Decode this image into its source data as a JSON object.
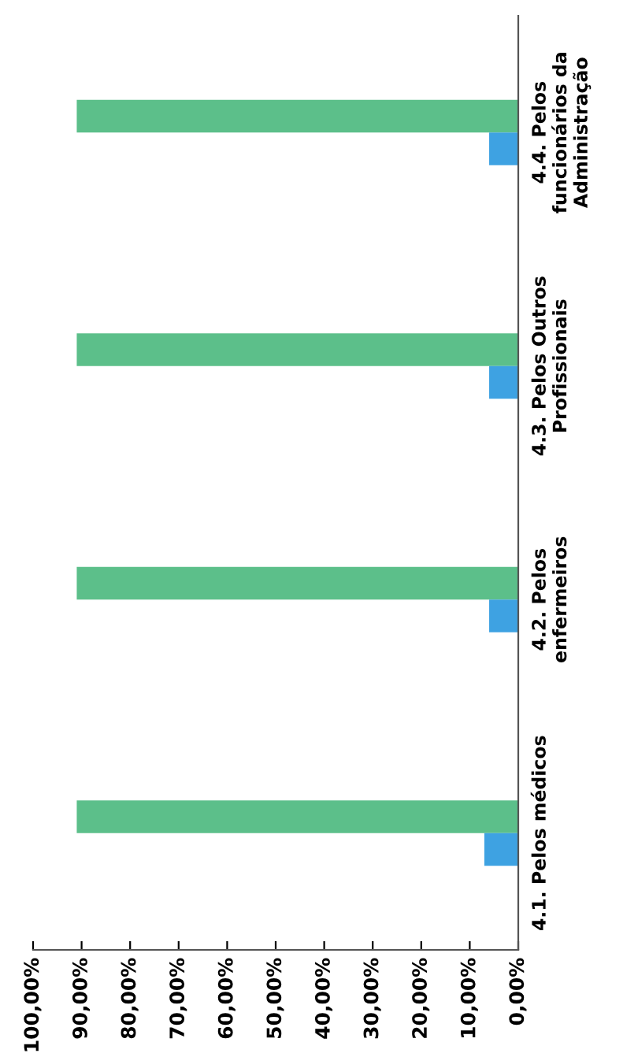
{
  "chart_data": {
    "type": "bar",
    "orientation": "horizontal",
    "categories": [
      "4.4. Pelos\nfuncionários da\nAdministração",
      "4.3. Pelos Outros\nProfissionais",
      "4.2. Pelos\nenfermeiros",
      "4.1. Pelos médicos"
    ],
    "series": [
      {
        "color": "#5cbf8a",
        "values": [
          91,
          91,
          91,
          91
        ]
      },
      {
        "color": "#3ea2e2",
        "values": [
          6,
          6,
          6,
          7
        ]
      }
    ],
    "xlim": [
      100,
      0
    ],
    "xticks": [
      {
        "value": 100,
        "label": "100,00%"
      },
      {
        "value": 90,
        "label": "90,00%"
      },
      {
        "value": 80,
        "label": "80,00%"
      },
      {
        "value": 70,
        "label": "70,00%"
      },
      {
        "value": 60,
        "label": "60,00%"
      },
      {
        "value": 50,
        "label": "50,00%"
      },
      {
        "value": 40,
        "label": "40,00%"
      },
      {
        "value": 30,
        "label": "30,00%"
      },
      {
        "value": 20,
        "label": "20,00%"
      },
      {
        "value": 10,
        "label": "10,00%"
      },
      {
        "value": 0,
        "label": "0,00%"
      }
    ],
    "grid": false,
    "legend": false
  }
}
